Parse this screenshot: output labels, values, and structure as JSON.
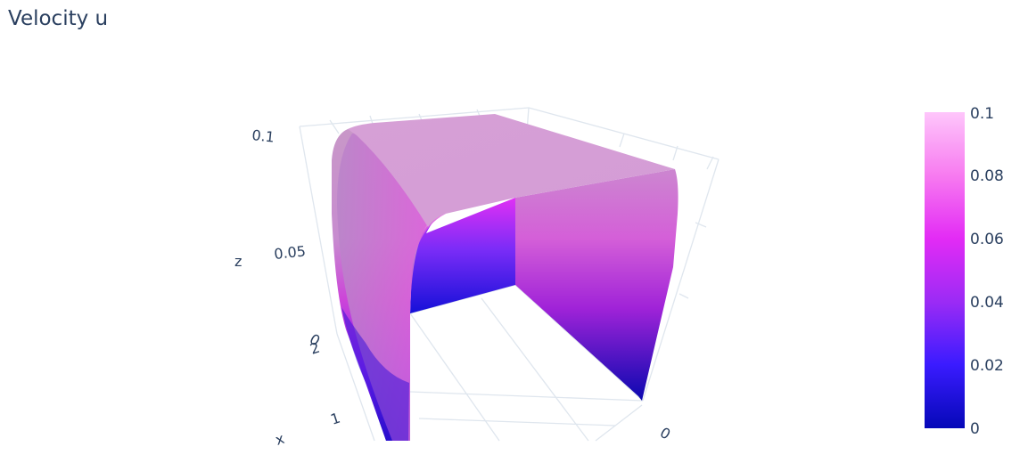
{
  "chart_data": {
    "type": "surface3d",
    "title": "Velocity u",
    "axes": {
      "x": {
        "label": "x",
        "ticks": [
          "0",
          "1",
          "2"
        ]
      },
      "y": {
        "label": "",
        "ticks": [
          "0"
        ]
      },
      "z": {
        "label": "z",
        "ticks": [
          "0",
          "0.05",
          "0.1"
        ],
        "range": [
          0,
          0.1
        ]
      }
    },
    "colorscale": {
      "name": "Plotly3",
      "stops": [
        {
          "value": 0.0,
          "color": "#0508b8"
        },
        {
          "value": 0.02,
          "color": "#3a1bff"
        },
        {
          "value": 0.04,
          "color": "#9b2bf5"
        },
        {
          "value": 0.06,
          "color": "#e32bf5"
        },
        {
          "value": 0.08,
          "color": "#f77bf0"
        },
        {
          "value": 0.1,
          "color": "#fec6fb"
        }
      ],
      "range": [
        0,
        0.1
      ],
      "ticks": [
        "0",
        "0.02",
        "0.04",
        "0.06",
        "0.08",
        "0.1"
      ]
    },
    "description_values": {
      "surface_max": 0.1,
      "surface_min": 0
    }
  }
}
